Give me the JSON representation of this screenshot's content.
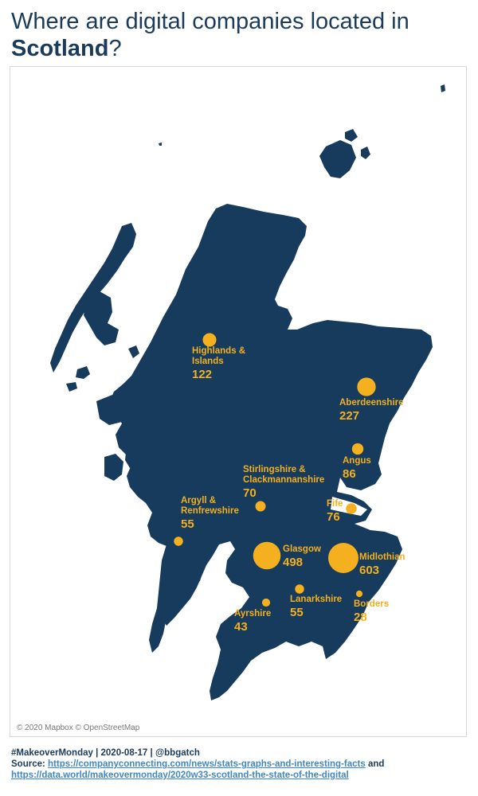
{
  "title": {
    "prefix": "Where are digital companies located in",
    "highlight": "Scotland",
    "suffix": "?"
  },
  "map": {
    "attribution": "© 2020 Mapbox © OpenStreetMap",
    "land_color": "#163b5c",
    "marker_color": "#f4b01e",
    "regions": [
      {
        "id": "highlands",
        "lines": [
          "Highlands &",
          "Islands"
        ],
        "value": "122",
        "count": 122
      },
      {
        "id": "aberdeenshire",
        "lines": [
          "Aberdeenshire"
        ],
        "value": "227",
        "count": 227
      },
      {
        "id": "angus",
        "lines": [
          "Angus"
        ],
        "value": "86",
        "count": 86
      },
      {
        "id": "stirlingshire",
        "lines": [
          "Stirlingshire &",
          "Clackmannanshire"
        ],
        "value": "70",
        "count": 70
      },
      {
        "id": "fife",
        "lines": [
          "Fife"
        ],
        "value": "76",
        "count": 76
      },
      {
        "id": "argyll",
        "lines": [
          "Argyll &",
          "Renfrewshire"
        ],
        "value": "55",
        "count": 55
      },
      {
        "id": "glasgow",
        "lines": [
          "Glasgow"
        ],
        "value": "498",
        "count": 498
      },
      {
        "id": "midlothian",
        "lines": [
          "Midlothian"
        ],
        "value": "603",
        "count": 603
      },
      {
        "id": "lanarkshire",
        "lines": [
          "Lanarkshire"
        ],
        "value": "55",
        "count": 55
      },
      {
        "id": "ayrshire",
        "lines": [
          "Ayrshire"
        ],
        "value": "43",
        "count": 43
      },
      {
        "id": "borders",
        "lines": [
          "Borders"
        ],
        "value": "28",
        "count": 28
      }
    ]
  },
  "footer": {
    "line1": "#MakeoverMonday | 2020-08-17 | @bbgatch",
    "source_label": "Source:",
    "link1": "https://companyconnecting.com/news/stats-graphs-and-interesting-facts",
    "and_text": "and",
    "link2": "https://data.world/makeovermonday/2020w33-scotland-the-state-of-the-digital"
  }
}
